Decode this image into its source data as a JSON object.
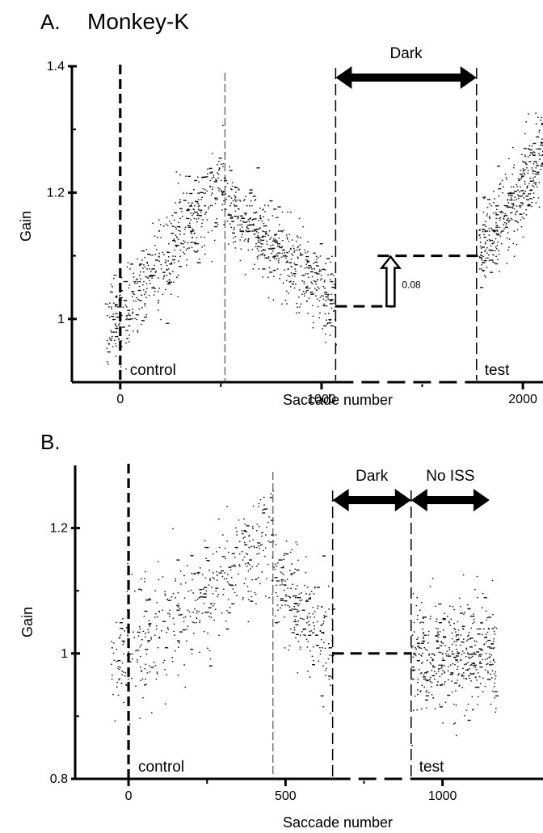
{
  "figure": {
    "panel_a_label": "A.",
    "panel_a_title": "Monkey-K",
    "panel_b_label": "B."
  },
  "chart_data": [
    {
      "type": "scatter",
      "panel": "A",
      "title": "Monkey-K",
      "xlabel": "Saccade number",
      "ylabel": "Gain",
      "xlim": [
        -240,
        2100
      ],
      "ylim": [
        0.9,
        1.4
      ],
      "x_ticks": [
        0,
        1000,
        2000
      ],
      "x_tick_labels": [
        "0",
        "1000",
        "2000"
      ],
      "y_ticks": [
        1.0,
        1.2,
        1.4
      ],
      "y_tick_labels": [
        "1",
        "1.2",
        "1.4"
      ],
      "phase_labels": {
        "control": "control",
        "test": "test",
        "dark": "Dark"
      },
      "dark_interval": [
        1070,
        1770
      ],
      "vertical_markers": {
        "start": 0,
        "peak": 520
      },
      "extinction_annotation": {
        "label": "0.08",
        "gain_before_dark": 1.02,
        "gain_after_dark": 1.1
      },
      "segments": [
        {
          "phase": "adapt-up",
          "x_start": -80,
          "x_end": 520,
          "gain_start": 0.98,
          "gain_end": 1.22,
          "spread": 0.035,
          "points": 520
        },
        {
          "phase": "adapt-down",
          "x_start": 520,
          "x_end": 1070,
          "gain_start": 1.19,
          "gain_end": 1.02,
          "spread": 0.032,
          "points": 520
        },
        {
          "phase": "test",
          "x_start": 1780,
          "x_end": 2150,
          "gain_start": 1.1,
          "gain_end": 1.29,
          "spread": 0.035,
          "points": 440
        }
      ]
    },
    {
      "type": "scatter",
      "panel": "B",
      "title": "",
      "xlabel": "Saccade number",
      "ylabel": "Gain",
      "xlim": [
        -170,
        1320
      ],
      "ylim": [
        0.8,
        1.3
      ],
      "x_ticks": [
        0,
        500,
        1000
      ],
      "x_tick_labels": [
        "0",
        "500",
        "1000"
      ],
      "y_ticks": [
        0.8,
        1.0,
        1.2
      ],
      "y_tick_labels": [
        "0.8",
        "1",
        "1.2"
      ],
      "phase_labels": {
        "control": "control",
        "test": "test",
        "dark": "Dark",
        "no_iss": "No ISS"
      },
      "dark_interval": [
        650,
        900
      ],
      "no_iss_interval": [
        900,
        1150
      ],
      "vertical_markers": {
        "start": 0,
        "peak": 460
      },
      "gain_before_dark": 1.0,
      "segments": [
        {
          "phase": "adapt-up",
          "x_start": -60,
          "x_end": 460,
          "gain_start": 0.98,
          "gain_end": 1.19,
          "spread": 0.045,
          "points": 480
        },
        {
          "phase": "adapt-down",
          "x_start": 460,
          "x_end": 650,
          "gain_start": 1.13,
          "gain_end": 1.0,
          "spread": 0.04,
          "points": 230
        },
        {
          "phase": "test",
          "x_start": 900,
          "x_end": 1170,
          "gain_start": 1.0,
          "gain_end": 1.0,
          "spread": 0.045,
          "points": 460
        }
      ]
    }
  ]
}
